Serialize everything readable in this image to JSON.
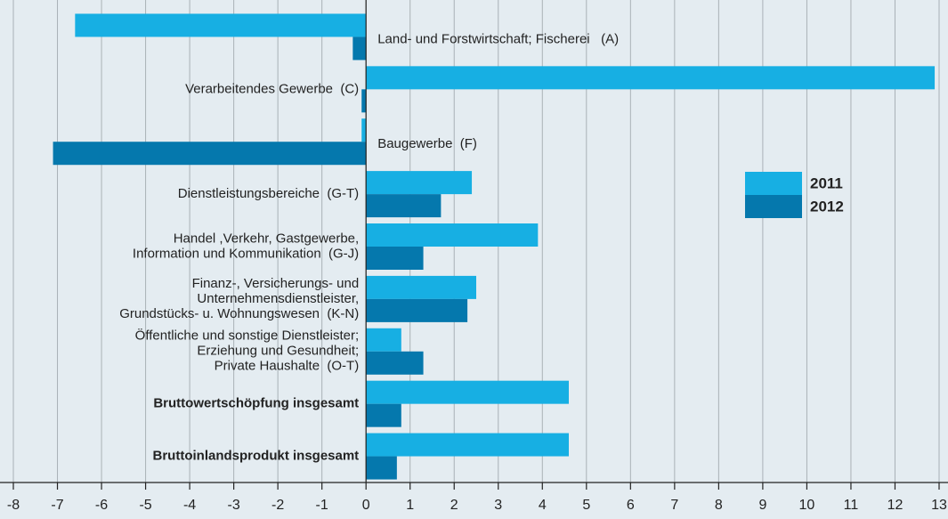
{
  "chart_data": {
    "type": "hbar",
    "categories": [
      [
        "Land- und Forstwirtschaft; Fischerei   (A)"
      ],
      [
        "Verarbeitendes Gewerbe  (C)"
      ],
      [
        "Baugewerbe  (F)"
      ],
      [
        "Dienstleistungsbereiche  (G-T)"
      ],
      [
        "Handel ,Verkehr, Gastgewerbe,",
        "Information und Kommunikation  (G-J)"
      ],
      [
        "Finanz-, Versicherungs- und",
        "Unternehmensdienstleister,",
        "Grundstücks- u. Wohnungswesen  (K-N)"
      ],
      [
        "Öffentliche und sonstige Dienstleister;",
        "Erziehung und Gesundheit;",
        "Private Haushalte  (O-T)"
      ],
      [
        "Bruttowertschöpfung insgesamt"
      ],
      [
        "Bruttoinlandsprodukt insgesamt"
      ]
    ],
    "series": [
      {
        "name": "2011",
        "color": "#17afe3",
        "values": [
          -6.6,
          12.9,
          -0.1,
          2.4,
          3.9,
          2.5,
          0.8,
          4.6,
          4.6
        ]
      },
      {
        "name": "2012",
        "color": "#0578ad",
        "values": [
          -0.3,
          -0.1,
          -7.1,
          1.7,
          1.3,
          2.3,
          1.3,
          0.8,
          0.7
        ]
      }
    ],
    "xlim": [
      -8,
      13
    ],
    "xticks": [
      -8,
      -7,
      -6,
      -5,
      -4,
      -3,
      -2,
      -1,
      0,
      1,
      2,
      3,
      4,
      5,
      6,
      7,
      8,
      9,
      10,
      11,
      12,
      13
    ],
    "grid": true
  }
}
